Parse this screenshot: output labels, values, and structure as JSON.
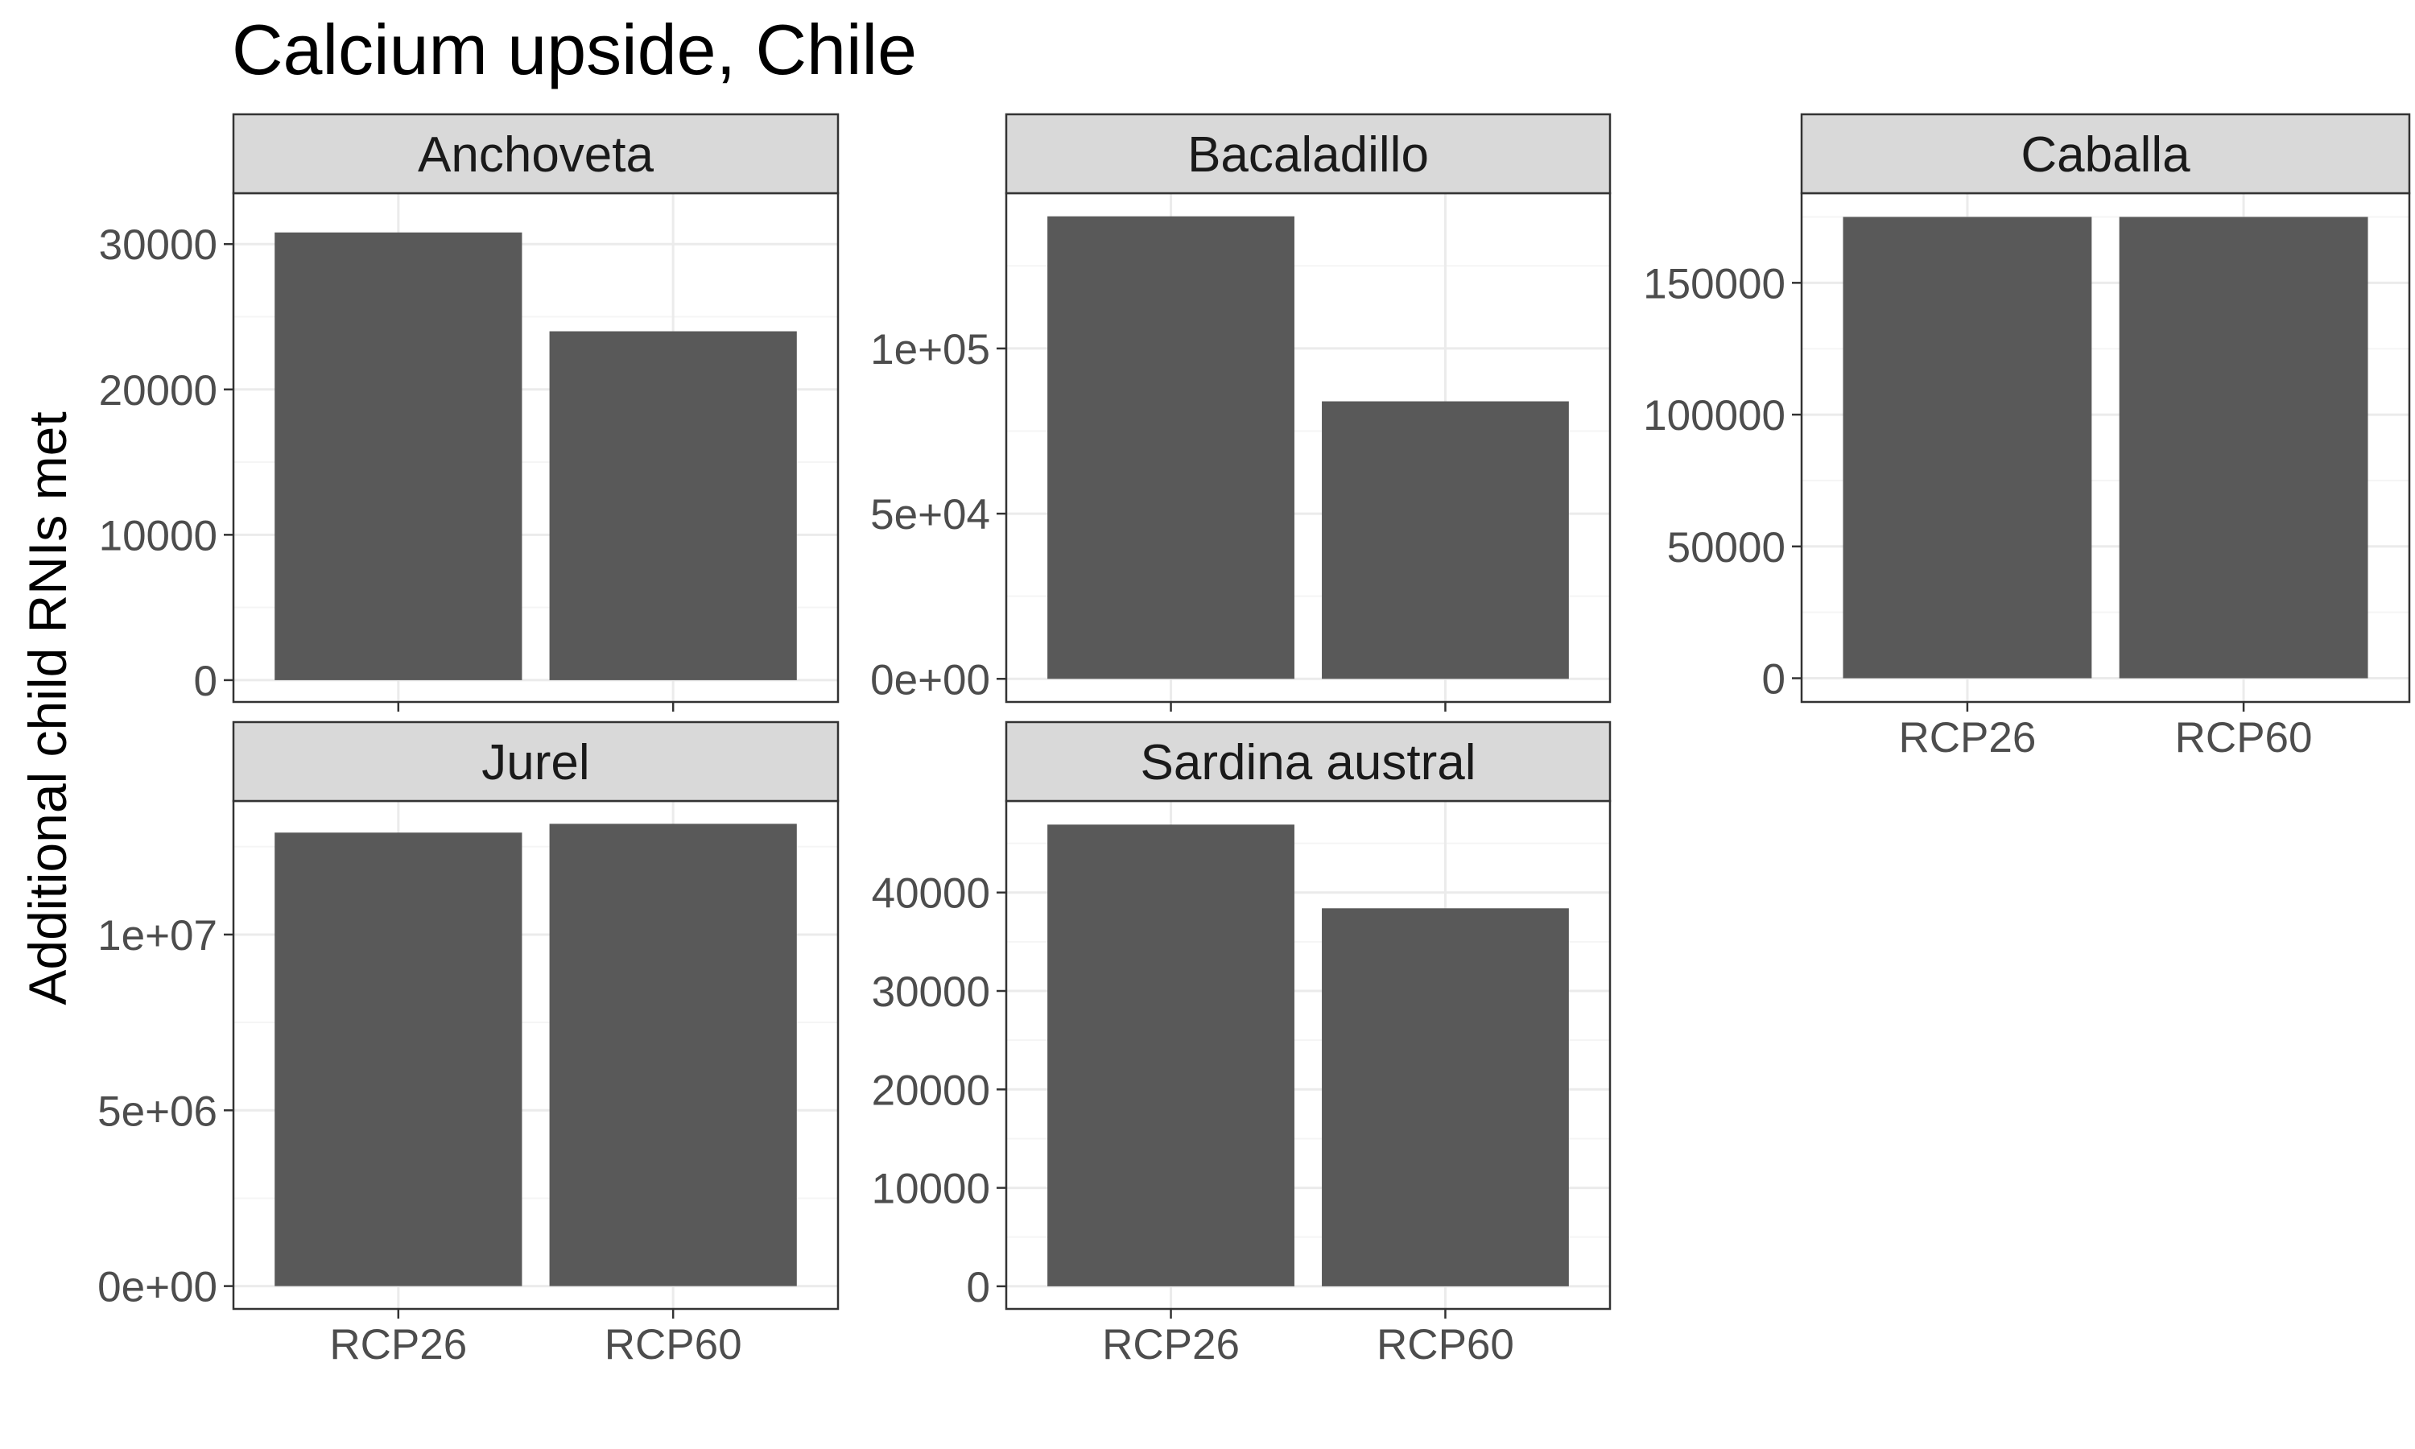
{
  "chart_data": {
    "type": "bar",
    "title": "Calcium upside, Chile",
    "xlabel": "",
    "ylabel": "Additional child RNIs met",
    "categories": [
      "RCP26",
      "RCP60"
    ],
    "grid": true,
    "facets": [
      {
        "name": "Anchoveta",
        "values": [
          30800,
          24000
        ],
        "ylim": [
          -1500,
          33500
        ],
        "yticks": [
          0,
          10000,
          20000,
          30000
        ],
        "ytick_labels": [
          "0",
          "10000",
          "20000",
          "30000"
        ],
        "show_x_ticks": false
      },
      {
        "name": "Bacaladillo",
        "values": [
          140000,
          84000
        ],
        "ylim": [
          -7000,
          147000
        ],
        "yticks": [
          0,
          50000,
          100000
        ],
        "ytick_labels": [
          "0e+00",
          "5e+04",
          "1e+05"
        ],
        "show_x_ticks": false
      },
      {
        "name": "Caballa",
        "values": [
          175000,
          175000
        ],
        "ylim": [
          -9000,
          184000
        ],
        "yticks": [
          0,
          50000,
          100000,
          150000
        ],
        "ytick_labels": [
          "0",
          "50000",
          "100000",
          "150000"
        ],
        "show_x_ticks": true
      },
      {
        "name": "Jurel",
        "values": [
          12900000,
          13150000
        ],
        "ylim": [
          -650000,
          13800000
        ],
        "yticks": [
          0,
          5000000,
          10000000
        ],
        "ytick_labels": [
          "0e+00",
          "5e+06",
          "1e+07"
        ],
        "show_x_ticks": true
      },
      {
        "name": "Sardina austral",
        "values": [
          46900,
          38400
        ],
        "ylim": [
          -2300,
          49300
        ],
        "yticks": [
          0,
          10000,
          20000,
          30000,
          40000
        ],
        "ytick_labels": [
          "0",
          "10000",
          "20000",
          "30000",
          "40000"
        ],
        "show_x_ticks": true
      }
    ],
    "colors": {
      "bar": "#595959",
      "strip_fill": "#d9d9d9",
      "panel_border": "#333333",
      "grid_major": "#ebebeb",
      "grid_minor": "#f5f5f5",
      "axis_text": "#4d4d4d"
    }
  }
}
